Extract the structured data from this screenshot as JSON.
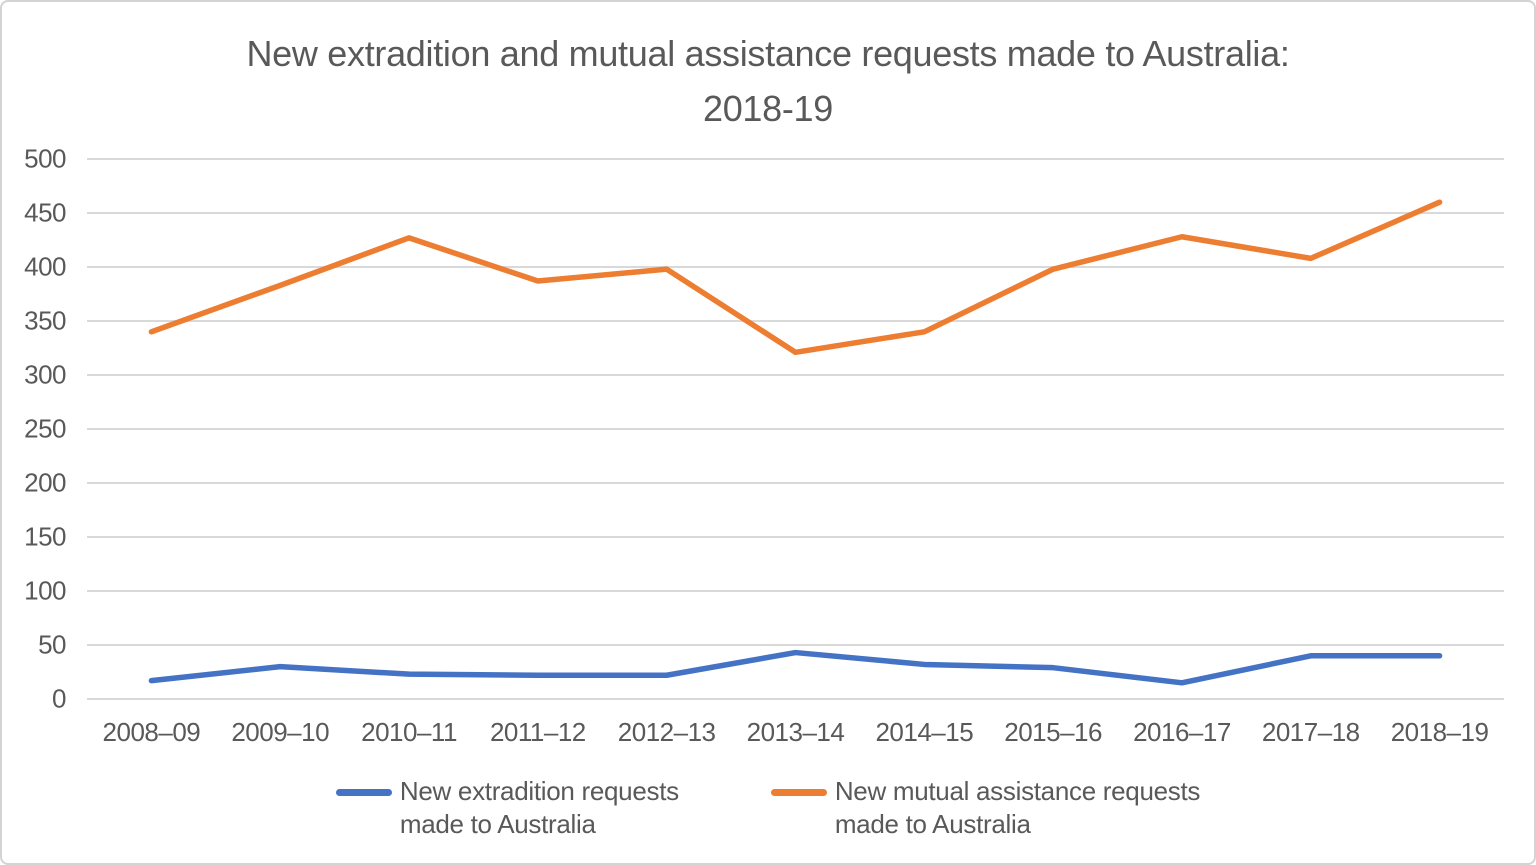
{
  "title": {
    "line1": "New extradition and mutual assistance requests made to Australia:",
    "line2": "2018-19"
  },
  "chart_data": {
    "type": "line",
    "title": "New extradition and mutual assistance requests made to Australia: 2018-19",
    "categories": [
      "2008–09",
      "2009–10",
      "2010–11",
      "2011–12",
      "2012–13",
      "2013–14",
      "2014–15",
      "2015–16",
      "2016–17",
      "2017–18",
      "2018–19"
    ],
    "series": [
      {
        "name": "New extradition requests made to Australia",
        "color": "#4472C4",
        "values": [
          17,
          30,
          23,
          22,
          22,
          43,
          32,
          29,
          15,
          40,
          40
        ]
      },
      {
        "name": "New mutual assistance requests made to Australia",
        "color": "#ED7D31",
        "values": [
          340,
          383,
          427,
          387,
          398,
          321,
          340,
          398,
          428,
          408,
          460
        ]
      }
    ],
    "xlabel": "",
    "ylabel": "",
    "ylim": [
      0,
      500
    ],
    "yticks": [
      0,
      50,
      100,
      150,
      200,
      250,
      300,
      350,
      400,
      450,
      500
    ],
    "grid": true,
    "gridline_color": "#D9D9D9",
    "legend_position": "bottom",
    "legend": [
      {
        "label_line1": "New extradition requests",
        "label_line2": "made to Australia",
        "color": "#4472C4"
      },
      {
        "label_line1": "New mutual assistance requests",
        "label_line2": "made to Australia",
        "color": "#ED7D31"
      }
    ],
    "text_color": "#595959"
  }
}
